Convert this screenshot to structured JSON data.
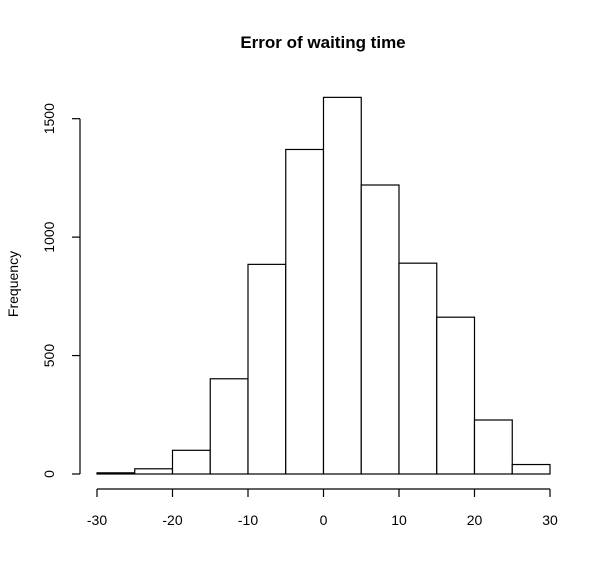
{
  "chart_data": {
    "type": "bar",
    "subtype": "histogram",
    "title": "Error of waiting time",
    "xlabel": "",
    "ylabel": "Frequency",
    "bin_edges": [
      -30,
      -25,
      -20,
      -15,
      -10,
      -5,
      0,
      5,
      10,
      15,
      20,
      25,
      30
    ],
    "values": [
      5,
      22,
      100,
      402,
      885,
      1370,
      1590,
      1220,
      890,
      662,
      228,
      40
    ],
    "xlim": [
      -30,
      30
    ],
    "ylim": [
      0,
      1600
    ],
    "x_ticks": [
      -30,
      -20,
      -10,
      0,
      10,
      20,
      30
    ],
    "y_ticks": [
      0,
      500,
      1000,
      1500
    ],
    "x_tick_labels": [
      "-30",
      "-20",
      "-10",
      "0",
      "10",
      "20",
      "30"
    ],
    "y_tick_labels": [
      "0",
      "500",
      "1000",
      "1500"
    ],
    "grid": false
  }
}
